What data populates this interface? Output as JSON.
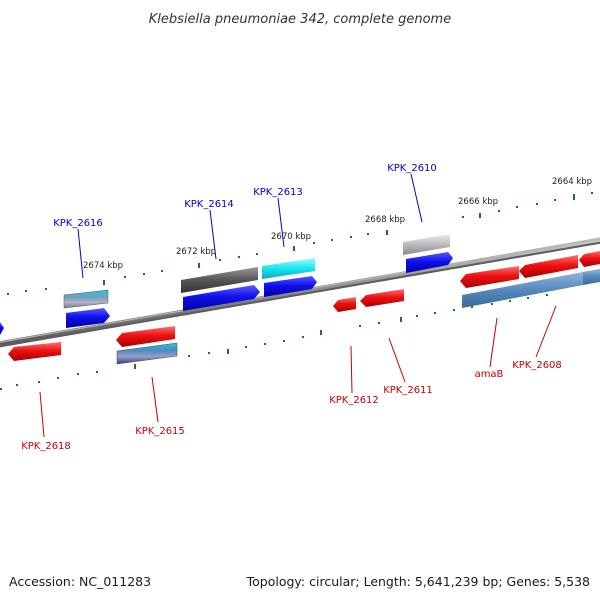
{
  "title": "Klebsiella pneumoniae 342, complete genome",
  "footer": {
    "accession": "Accession: NC_011283",
    "summary": "Topology: circular; Length: 5,641,239 bp; Genes: 5,538"
  },
  "colors": {
    "forward_label": "#0000cc",
    "reverse_label": "#cc0000",
    "backbone": "#8c8c8c",
    "ticks": "#1a7a1a"
  },
  "kbp_labels": [
    "2674 kbp",
    "2672 kbp",
    "2670 kbp",
    "2668 kbp",
    "2666 kbp",
    "2664 kbp"
  ],
  "gene_labels": {
    "forward": [
      "KPK_2616",
      "KPK_2614",
      "KPK_2613",
      "KPK_2610"
    ],
    "reverse": [
      "KPK_2618",
      "KPK_2615",
      "KPK_2612",
      "KPK_2611",
      "amaB",
      "KPK_2608"
    ]
  }
}
